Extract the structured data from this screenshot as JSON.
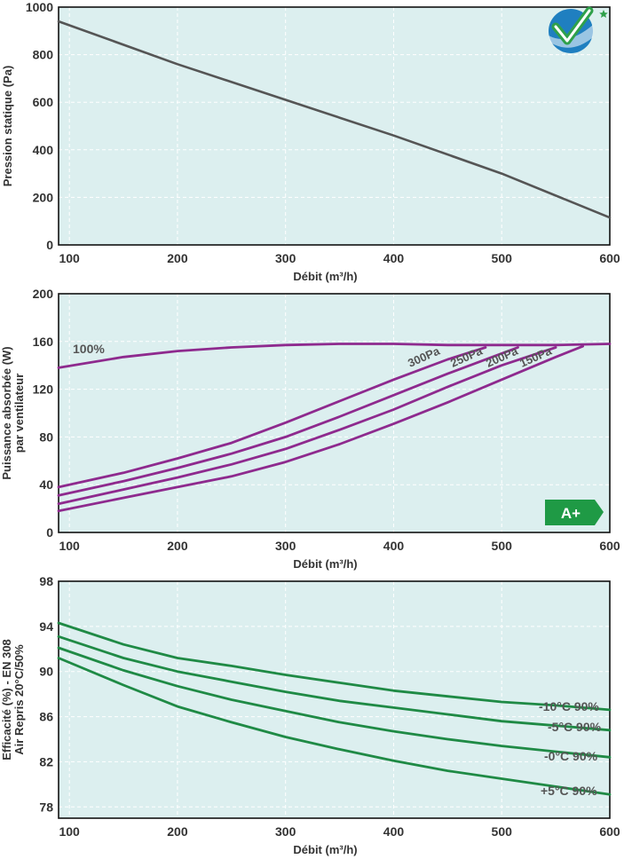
{
  "colors": {
    "plot_bg": "#dcefef",
    "grid": "#ffffff",
    "frame": "#111111",
    "text": "#333333",
    "pressure_line": "#555555",
    "power_line": "#8e2a8e",
    "efficiency_line": "#1f8a45",
    "badge": "#1f9a45",
    "logo_blue": "#1f7fc0",
    "logo_green": "#2fa04a"
  },
  "badge": {
    "label": "A+"
  },
  "chart_data": [
    {
      "type": "line",
      "title": "",
      "xlabel": "Débit (m³/h)",
      "ylabel": "Pression statique (Pa)",
      "xlim": [
        90,
        600
      ],
      "ylim": [
        0,
        1000
      ],
      "xticks": [
        100,
        200,
        300,
        400,
        500,
        600
      ],
      "yticks": [
        0,
        200,
        400,
        600,
        800,
        1000
      ],
      "grid": true,
      "series": [
        {
          "name": "Pression statique",
          "x": [
            90,
            200,
            300,
            400,
            500,
            600
          ],
          "y": [
            940,
            760,
            610,
            460,
            300,
            115
          ]
        }
      ]
    },
    {
      "type": "line",
      "title": "",
      "xlabel": "Débit (m³/h)",
      "ylabel": "Puissance absorbée (W)",
      "ylabel2": "par ventilateur",
      "xlim": [
        90,
        600
      ],
      "ylim": [
        0,
        200
      ],
      "xticks": [
        100,
        200,
        300,
        400,
        500,
        600
      ],
      "yticks": [
        0,
        40,
        80,
        120,
        160,
        200
      ],
      "grid": true,
      "series": [
        {
          "name": "100%",
          "x": [
            90,
            150,
            200,
            250,
            300,
            350,
            400,
            450,
            500,
            550,
            600
          ],
          "y": [
            138,
            147,
            152,
            155,
            157,
            158,
            158,
            157,
            157,
            157,
            158
          ]
        },
        {
          "name": "300Pa",
          "x": [
            90,
            150,
            200,
            250,
            300,
            350,
            400,
            450,
            485
          ],
          "y": [
            38,
            50,
            62,
            75,
            92,
            110,
            128,
            145,
            155
          ]
        },
        {
          "name": "250Pa",
          "x": [
            90,
            150,
            200,
            250,
            300,
            350,
            400,
            450,
            500,
            515
          ],
          "y": [
            31,
            43,
            54,
            66,
            80,
            97,
            115,
            133,
            150,
            155
          ]
        },
        {
          "name": "200Pa",
          "x": [
            90,
            150,
            200,
            250,
            300,
            350,
            400,
            450,
            500,
            550
          ],
          "y": [
            24,
            36,
            46,
            57,
            70,
            86,
            103,
            122,
            140,
            155
          ]
        },
        {
          "name": "150Pa",
          "x": [
            90,
            150,
            200,
            250,
            300,
            350,
            400,
            450,
            500,
            550,
            575
          ],
          "y": [
            18,
            29,
            38,
            47,
            59,
            74,
            91,
            109,
            128,
            147,
            156
          ]
        }
      ]
    },
    {
      "type": "line",
      "title": "",
      "xlabel": "Débit (m³/h)",
      "ylabel": "Efficacité (%) - EN 308",
      "ylabel2": "Air Repris 20°C/50%",
      "xlim": [
        90,
        600
      ],
      "ylim": [
        77,
        98
      ],
      "xticks": [
        100,
        200,
        300,
        400,
        500,
        600
      ],
      "yticks": [
        78,
        82,
        86,
        90,
        94,
        98
      ],
      "grid": true,
      "series": [
        {
          "name": "-10°C 90%",
          "x": [
            90,
            150,
            200,
            250,
            300,
            350,
            400,
            450,
            500,
            550,
            600
          ],
          "y": [
            94.3,
            92.4,
            91.2,
            90.5,
            89.7,
            89.0,
            88.3,
            87.8,
            87.3,
            87.0,
            86.6
          ]
        },
        {
          "name": "-5°C 90%",
          "x": [
            90,
            150,
            200,
            250,
            300,
            350,
            400,
            450,
            500,
            550,
            600
          ],
          "y": [
            93.1,
            91.2,
            90.0,
            89.1,
            88.2,
            87.4,
            86.8,
            86.2,
            85.6,
            85.2,
            84.8
          ]
        },
        {
          "name": "-0°C 90%",
          "x": [
            90,
            150,
            200,
            250,
            300,
            350,
            400,
            450,
            500,
            550,
            600
          ],
          "y": [
            92.1,
            90.1,
            88.7,
            87.5,
            86.5,
            85.5,
            84.7,
            84.0,
            83.4,
            82.9,
            82.4
          ]
        },
        {
          "name": "+5°C 90%",
          "x": [
            90,
            150,
            200,
            250,
            300,
            350,
            400,
            450,
            500,
            550,
            600
          ],
          "y": [
            91.2,
            88.8,
            86.9,
            85.5,
            84.2,
            83.1,
            82.1,
            81.2,
            80.5,
            79.8,
            79.1
          ]
        }
      ]
    }
  ]
}
